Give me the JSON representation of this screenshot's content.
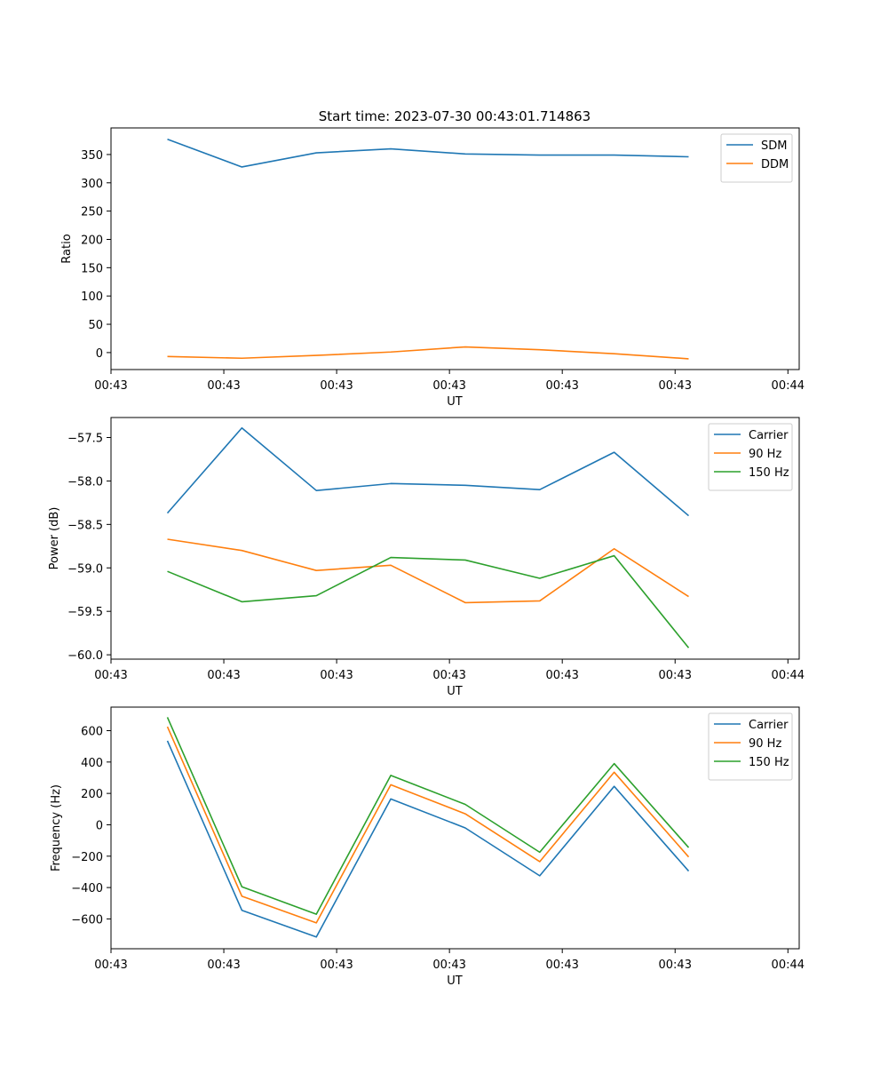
{
  "figure": {
    "title": "Start time: 2023-07-30 00:43:01.714863"
  },
  "chart_data": [
    {
      "type": "line",
      "xlabel": "UT",
      "ylabel": "Ratio",
      "x": [
        0.5,
        1.16,
        1.82,
        2.48,
        3.14,
        3.8,
        4.46,
        5.12
      ],
      "xlim": [
        0,
        6.1
      ],
      "xticks": [
        0.0,
        1.0,
        2.0,
        3.0,
        4.0,
        5.0,
        6.0
      ],
      "xtick_labels": [
        "00:43",
        "00:43",
        "00:43",
        "00:43",
        "00:43",
        "00:43",
        "00:44"
      ],
      "ylim": [
        -30,
        397
      ],
      "yticks": [
        0,
        50,
        100,
        150,
        200,
        250,
        300,
        350
      ],
      "ytick_labels": [
        "0",
        "50",
        "100",
        "150",
        "200",
        "250",
        "300",
        "350"
      ],
      "legend_position": "top-right",
      "series": [
        {
          "name": "SDM",
          "color": "#1f77b4",
          "values": [
            377,
            328,
            353,
            360,
            351,
            349,
            349,
            346
          ]
        },
        {
          "name": "DDM",
          "color": "#ff7f0e",
          "values": [
            -7,
            -10,
            -5,
            1,
            10,
            5,
            -2,
            -11
          ]
        }
      ]
    },
    {
      "type": "line",
      "xlabel": "UT",
      "ylabel": "Power (dB)",
      "x": [
        0.5,
        1.16,
        1.82,
        2.48,
        3.14,
        3.8,
        4.46,
        5.12
      ],
      "xlim": [
        0,
        6.1
      ],
      "xticks": [
        0.0,
        1.0,
        2.0,
        3.0,
        4.0,
        5.0,
        6.0
      ],
      "xtick_labels": [
        "00:43",
        "00:43",
        "00:43",
        "00:43",
        "00:43",
        "00:43",
        "00:44"
      ],
      "ylim": [
        -60.05,
        -57.27
      ],
      "yticks": [
        -60.0,
        -59.5,
        -59.0,
        -58.5,
        -58.0,
        -57.5
      ],
      "ytick_labels": [
        "−60.0",
        "−59.5",
        "−59.0",
        "−58.5",
        "−58.0",
        "−57.5"
      ],
      "legend_position": "top-right",
      "series": [
        {
          "name": "Carrier",
          "color": "#1f77b4",
          "values": [
            -58.37,
            -57.39,
            -58.11,
            -58.03,
            -58.05,
            -58.1,
            -57.67,
            -58.4
          ]
        },
        {
          "name": "90 Hz",
          "color": "#ff7f0e",
          "values": [
            -58.67,
            -58.8,
            -59.03,
            -58.97,
            -59.4,
            -59.38,
            -58.78,
            -59.33
          ]
        },
        {
          "name": "150 Hz",
          "color": "#2ca02c",
          "values": [
            -59.04,
            -59.39,
            -59.32,
            -58.88,
            -58.91,
            -59.12,
            -58.86,
            -59.92
          ]
        }
      ]
    },
    {
      "type": "line",
      "xlabel": "UT",
      "ylabel": "Frequency (Hz)",
      "x": [
        0.5,
        1.16,
        1.82,
        2.48,
        3.14,
        3.8,
        4.46,
        5.12
      ],
      "xlim": [
        0,
        6.1
      ],
      "xticks": [
        0.0,
        1.0,
        2.0,
        3.0,
        4.0,
        5.0,
        6.0
      ],
      "xtick_labels": [
        "00:43",
        "00:43",
        "00:43",
        "00:43",
        "00:43",
        "00:43",
        "00:44"
      ],
      "ylim": [
        -790,
        750
      ],
      "yticks": [
        -600,
        -400,
        -200,
        0,
        200,
        400,
        600
      ],
      "ytick_labels": [
        "−600",
        "−400",
        "−200",
        "0",
        "200",
        "400",
        "600"
      ],
      "legend_position": "top-right",
      "series": [
        {
          "name": "Carrier",
          "color": "#1f77b4",
          "values": [
            535,
            -545,
            -715,
            165,
            -20,
            -325,
            245,
            -295
          ]
        },
        {
          "name": "90 Hz",
          "color": "#ff7f0e",
          "values": [
            625,
            -455,
            -625,
            255,
            70,
            -235,
            335,
            -205
          ]
        },
        {
          "name": "150 Hz",
          "color": "#2ca02c",
          "values": [
            685,
            -395,
            -570,
            315,
            130,
            -175,
            390,
            -145
          ]
        }
      ]
    }
  ]
}
